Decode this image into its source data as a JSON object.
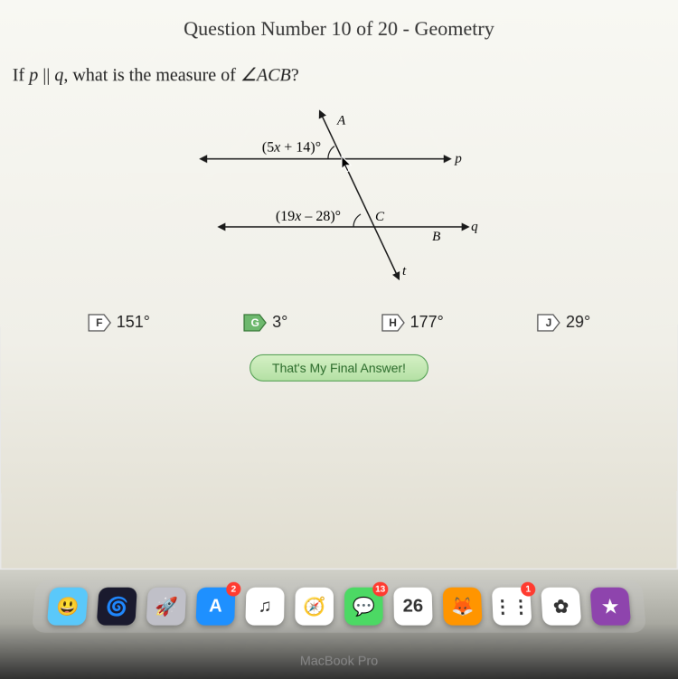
{
  "title": "Question Number 10 of 20 - Geometry",
  "question_prefix": "If ",
  "question_p": "p",
  "question_parallel": " || ",
  "question_q": "q",
  "question_mid": ", what is the measure of ",
  "question_angle": "∠ACB",
  "question_suffix": "?",
  "diagram": {
    "label_A": "A",
    "label_p": "p",
    "label_C": "C",
    "label_B": "B",
    "label_q": "q",
    "label_t": "t",
    "expr_top": "(5x + 14)°",
    "expr_bottom": "(19x – 28)°",
    "line_color": "#1a1a1a",
    "line_width": 1.5,
    "bg": "transparent"
  },
  "choices": [
    {
      "letter": "F",
      "text": "151°",
      "selected": false,
      "fill": "#ffffff",
      "stroke": "#555555",
      "textcolor": "#333333"
    },
    {
      "letter": "G",
      "text": "3°",
      "selected": true,
      "fill": "#6db86d",
      "stroke": "#3a7a3a",
      "textcolor": "#ffffff"
    },
    {
      "letter": "H",
      "text": "177°",
      "selected": false,
      "fill": "#ffffff",
      "stroke": "#555555",
      "textcolor": "#333333"
    },
    {
      "letter": "J",
      "text": "29°",
      "selected": false,
      "fill": "#ffffff",
      "stroke": "#555555",
      "textcolor": "#333333"
    }
  ],
  "final_answer_label": "That's My Final Answer!",
  "dock": {
    "items": [
      {
        "name": "finder",
        "bg": "#5ac8fa",
        "glyph": "😃",
        "badge": null
      },
      {
        "name": "siri",
        "bg": "#1a1a2e",
        "glyph": "🌀",
        "badge": null
      },
      {
        "name": "launchpad",
        "bg": "#c0c0c8",
        "glyph": "🚀",
        "badge": null
      },
      {
        "name": "appstore",
        "bg": "#1e90ff",
        "glyph": "A",
        "badge": "2"
      },
      {
        "name": "itunes",
        "bg": "#ffffff",
        "glyph": "♫",
        "badge": null
      },
      {
        "name": "safari",
        "bg": "#ffffff",
        "glyph": "🧭",
        "badge": null
      },
      {
        "name": "messages",
        "bg": "#4cd964",
        "glyph": "💬",
        "badge": "13"
      },
      {
        "name": "calendar",
        "bg": "#ffffff",
        "glyph": "26",
        "badge": null
      },
      {
        "name": "firefox",
        "bg": "#ff9500",
        "glyph": "🦊",
        "badge": null
      },
      {
        "name": "reminders",
        "bg": "#ffffff",
        "glyph": "⋮⋮",
        "badge": "1"
      },
      {
        "name": "photos",
        "bg": "#ffffff",
        "glyph": "✿",
        "badge": null
      },
      {
        "name": "imovie",
        "bg": "#8e44ad",
        "glyph": "★",
        "badge": null
      }
    ]
  },
  "macbook_label": "MacBook Pro",
  "colors": {
    "screen_bg_top": "#f8f8f3",
    "screen_bg_bottom": "#e0ddd0",
    "text": "#222222"
  }
}
